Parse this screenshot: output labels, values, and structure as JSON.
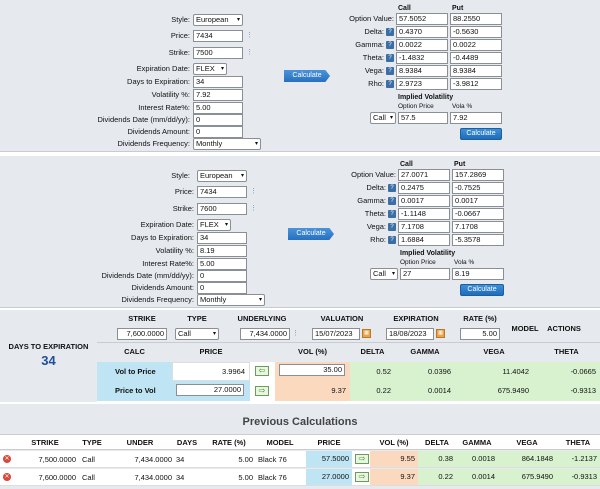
{
  "calc1": {
    "style": "European",
    "price": "7434",
    "strike": "7500",
    "expiration_date": "FLEX",
    "days_to_expiration": "34",
    "volatility": "7.92",
    "interest_rate": "5.00",
    "dividends_date": "0",
    "dividends_amount": "0",
    "dividends_frequency": "Monthly",
    "calc_label": "Calculate",
    "labels": {
      "style": "Style:",
      "price": "Price:",
      "strike": "Strike:",
      "expiration_date": "Expiration Date:",
      "days": "Days to Expiration:",
      "vol": "Volatility %:",
      "rate": "Interest Rate%:",
      "div_date": "Dividends Date (mm/dd/yy):",
      "div_amount": "Dividends Amount:",
      "div_freq": "Dividends Frequency:"
    },
    "results": {
      "call_header": "Call",
      "put_header": "Put",
      "option_value_label": "Option Value:",
      "delta_label": "Delta:",
      "gamma_label": "Gamma:",
      "theta_label": "Theta:",
      "vega_label": "Vega:",
      "rho_label": "Rho:",
      "call": {
        "value": "57.5052",
        "delta": "0.4370",
        "gamma": "0.0022",
        "theta": "-1.4832",
        "vega": "8.9384",
        "rho": "2.9723"
      },
      "put": {
        "value": "88.2550",
        "delta": "-0.5630",
        "gamma": "0.0022",
        "theta": "-0.4489",
        "vega": "8.9384",
        "rho": "-3.9812"
      }
    },
    "iv": {
      "title": "Implied Volatility",
      "option_price_label": "Option Price",
      "vola_label": "Vola %",
      "type": "Call",
      "option_price": "57.5",
      "vola": "7.92",
      "calc_label": "Calculate"
    }
  },
  "calc2": {
    "style": "European",
    "price": "7434",
    "strike": "7600",
    "expiration_date": "FLEX",
    "days_to_expiration": "34",
    "volatility": "8.19",
    "interest_rate": "5.00",
    "dividends_date": "0",
    "dividends_amount": "0",
    "dividends_frequency": "Monthly",
    "calc_label": "Calculate",
    "results": {
      "call": {
        "value": "27.0071",
        "delta": "0.2475",
        "gamma": "0.0017",
        "theta": "-1.1148",
        "vega": "7.1708",
        "rho": "1.6884"
      },
      "put": {
        "value": "157.2869",
        "delta": "-0.7525",
        "gamma": "0.0017",
        "theta": "-0.0667",
        "vega": "7.1708",
        "rho": "-5.3578"
      }
    },
    "iv": {
      "type": "Call",
      "option_price": "27",
      "vola": "8.19",
      "calc_label": "Calculate"
    }
  },
  "model": {
    "dte_label": "DAYS TO EXPIRATION",
    "dte_value": "34",
    "headers": {
      "strike": "STRIKE",
      "type": "TYPE",
      "underlying": "UNDERLYING",
      "valuation": "VALUATION",
      "expiration": "EXPIRATION",
      "rate": "RATE (%)",
      "model": "MODEL",
      "actions": "ACTIONS"
    },
    "strike": "7,600.0000",
    "type": "Call",
    "underlying": "7,434.0000",
    "valuation": "15/07/2023",
    "expiration": "18/08/2023",
    "rate": "5.00",
    "col": {
      "calc": "CALC",
      "price": "PRICE",
      "vol": "VOL (%)",
      "delta": "DELTA",
      "gamma": "GAMMA",
      "vega": "VEGA",
      "theta": "THETA"
    },
    "rows": [
      {
        "label": "Vol to Price",
        "price": "3.9964",
        "vol": "35.00",
        "delta": "0.52",
        "gamma": "0.0396",
        "vega": "11.4042",
        "theta": "-0.0665"
      },
      {
        "label": "Price to Vol",
        "price": "27.0000",
        "vol": "9.37",
        "delta": "0.22",
        "gamma": "0.0014",
        "vega": "675.9490",
        "theta": "-0.9313"
      }
    ]
  },
  "previous": {
    "title": "Previous Calculations",
    "headers": [
      "STRIKE",
      "TYPE",
      "UNDER",
      "DAYS",
      "RATE (%)",
      "MODEL",
      "PRICE",
      "VOL (%)",
      "DELTA",
      "GAMMA",
      "VEGA",
      "THETA"
    ],
    "rows": [
      [
        "7,500.0000",
        "Call",
        "7,434.0000",
        "34",
        "5.00",
        "Black 76",
        "57.5000",
        "9.55",
        "0.38",
        "0.0018",
        "864.1848",
        "-1.2137"
      ],
      [
        "7,600.0000",
        "Call",
        "7,434.0000",
        "34",
        "5.00",
        "Black 76",
        "27.0000",
        "9.37",
        "0.22",
        "0.0014",
        "675.9490",
        "-0.9313"
      ]
    ]
  },
  "colors": {
    "panel": "#e6e9ee",
    "green": "#d8f2cf",
    "peach": "#fbd9bf",
    "cyan": "#bfe5f5",
    "accent": "#1f6cb8"
  }
}
